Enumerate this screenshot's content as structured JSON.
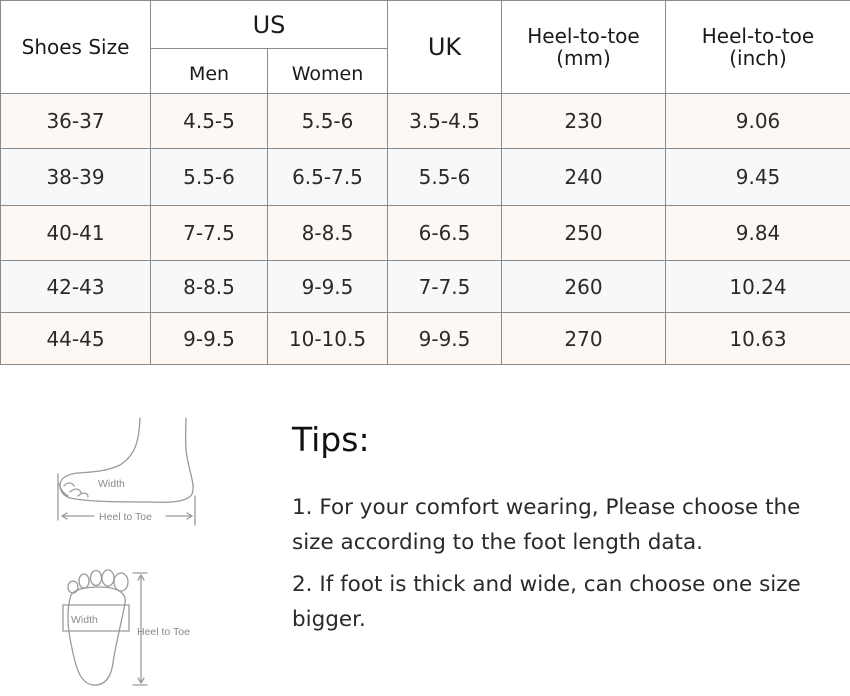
{
  "table": {
    "headers": {
      "shoes_size": "Shoes Size",
      "us": "US",
      "men": "Men",
      "women": "Women",
      "uk": "UK",
      "heel_mm_line1": "Heel-to-toe",
      "heel_mm_line2": "(mm)",
      "heel_inch_line1": "Heel-to-toe",
      "heel_inch_line2": "(inch)"
    },
    "rows": [
      {
        "size": "36-37",
        "men": "4.5-5",
        "women": "5.5-6",
        "uk": "3.5-4.5",
        "mm": "230",
        "inch": "9.06"
      },
      {
        "size": "38-39",
        "men": "5.5-6",
        "women": "6.5-7.5",
        "uk": "5.5-6",
        "mm": "240",
        "inch": "9.45"
      },
      {
        "size": "40-41",
        "men": "7-7.5",
        "women": "8-8.5",
        "uk": "6-6.5",
        "mm": "250",
        "inch": "9.84"
      },
      {
        "size": "42-43",
        "men": "8-8.5",
        "women": "9-9.5",
        "uk": "7-7.5",
        "mm": "260",
        "inch": "10.24"
      },
      {
        "size": "44-45",
        "men": "9-9.5",
        "women": "10-10.5",
        "uk": "9-9.5",
        "mm": "270",
        "inch": "10.63"
      }
    ]
  },
  "illustrations": {
    "side": {
      "width_label": "Width",
      "length_label": "Heel to Toe"
    },
    "top": {
      "width_label": "Width",
      "length_label": "Heel to Toe"
    }
  },
  "tips": {
    "title": "Tips:",
    "items": [
      "1. For your comfort wearing, Please choose the size according to the foot length data.",
      "2. If foot is thick and wide, can choose one size bigger."
    ]
  }
}
